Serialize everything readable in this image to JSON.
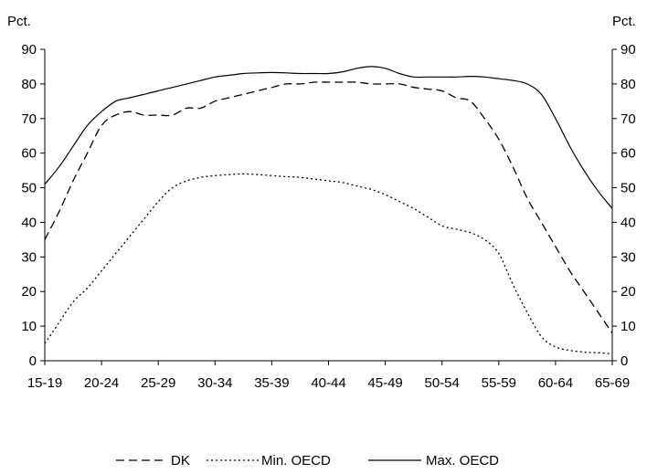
{
  "chart_data": {
    "type": "line",
    "title": "",
    "xlabel": "",
    "ylabel_left": "Pct.",
    "ylabel_right": "Pct.",
    "categories": [
      "15-19",
      "20-24",
      "25-29",
      "30-34",
      "35-39",
      "40-44",
      "45-49",
      "50-54",
      "55-59",
      "60-64",
      "65-69"
    ],
    "ylim": [
      0,
      90
    ],
    "yticks": [
      0,
      10,
      20,
      30,
      40,
      50,
      60,
      70,
      80,
      90
    ],
    "grid": false,
    "legend_position": "bottom",
    "series": [
      {
        "name": "DK",
        "style": "dashed",
        "x": [
          0,
          0.25,
          0.5,
          0.75,
          1,
          1.25,
          1.5,
          1.75,
          2,
          2.25,
          2.5,
          2.75,
          3,
          3.25,
          3.5,
          3.75,
          4,
          4.25,
          4.5,
          4.75,
          5,
          5.25,
          5.5,
          5.75,
          6,
          6.25,
          6.5,
          6.75,
          7,
          7.25,
          7.5,
          7.75,
          8,
          8.25,
          8.5,
          8.75,
          9,
          9.25,
          9.5,
          9.75,
          10
        ],
        "values": [
          35,
          43,
          52,
          60,
          68,
          71,
          72,
          71,
          71,
          71,
          73,
          73,
          75,
          76,
          77,
          78,
          79,
          80,
          80,
          80.5,
          80.5,
          80.5,
          80.5,
          80,
          80,
          80,
          79,
          78.5,
          78,
          76,
          75,
          70,
          64,
          56,
          47,
          40,
          33,
          26,
          20,
          14,
          8
        ]
      },
      {
        "name": "Min. OECD",
        "style": "dotted",
        "x": [
          0,
          0.25,
          0.5,
          0.75,
          1,
          1.25,
          1.5,
          1.75,
          2,
          2.25,
          2.5,
          2.75,
          3,
          3.25,
          3.5,
          3.75,
          4,
          4.25,
          4.5,
          4.75,
          5,
          5.25,
          5.5,
          5.75,
          6,
          6.25,
          6.5,
          6.75,
          7,
          7.25,
          7.5,
          7.75,
          8,
          8.25,
          8.5,
          8.75,
          9,
          9.25,
          9.5,
          9.75,
          10
        ],
        "values": [
          5,
          11,
          17,
          21,
          26,
          31,
          36,
          41,
          46,
          50,
          52,
          53,
          53.5,
          53.8,
          54,
          53.8,
          53.5,
          53.2,
          53,
          52.5,
          52,
          51.5,
          50.5,
          49.5,
          48,
          46,
          44,
          41.5,
          39,
          38,
          37,
          35,
          31,
          22,
          14,
          7,
          4,
          3,
          2.5,
          2.3,
          2
        ]
      },
      {
        "name": "Max. OECD",
        "style": "solid",
        "x": [
          0,
          0.25,
          0.5,
          0.75,
          1,
          1.25,
          1.5,
          1.75,
          2,
          2.25,
          2.5,
          2.75,
          3,
          3.25,
          3.5,
          3.75,
          4,
          4.25,
          4.5,
          4.75,
          5,
          5.25,
          5.5,
          5.75,
          6,
          6.25,
          6.5,
          6.75,
          7,
          7.25,
          7.5,
          7.75,
          8,
          8.25,
          8.5,
          8.75,
          9,
          9.25,
          9.5,
          9.75,
          10
        ],
        "values": [
          51,
          56,
          62,
          68,
          72,
          75,
          76,
          77,
          78,
          79,
          80,
          81,
          82,
          82.5,
          83,
          83.2,
          83.3,
          83.2,
          83,
          83,
          83,
          83.5,
          84.5,
          85,
          84.5,
          83,
          82,
          82,
          82,
          82,
          82.2,
          82,
          81.5,
          81,
          80,
          77,
          70,
          62,
          55,
          49,
          44
        ]
      }
    ]
  },
  "legend": {
    "items": [
      {
        "label": "DK"
      },
      {
        "label": "Min. OECD"
      },
      {
        "label": "Max. OECD"
      }
    ]
  }
}
